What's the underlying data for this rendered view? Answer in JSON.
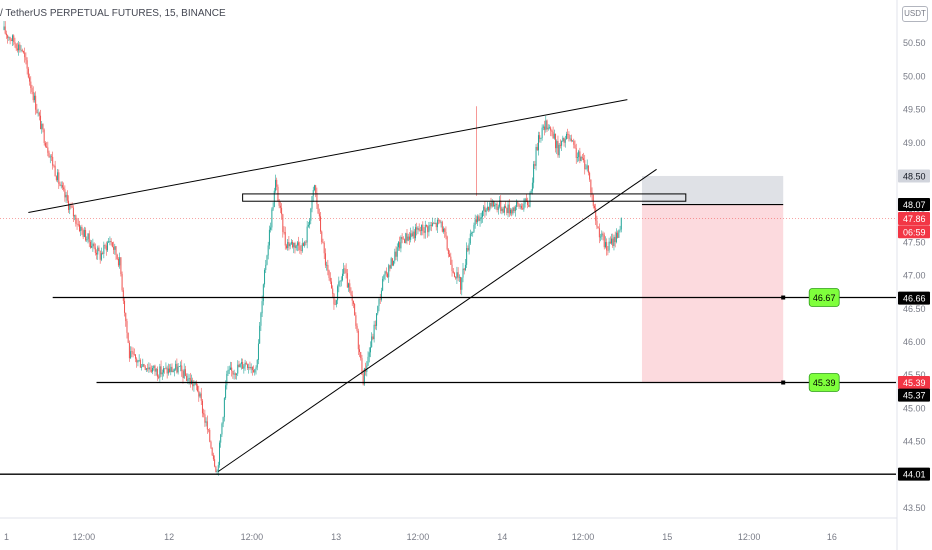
{
  "header": {
    "symbol_title": "/ TetherUS PERPETUAL FUTURES, 15, BINANCE",
    "currency": "USDT"
  },
  "colors": {
    "up": "#26a69a",
    "down": "#ef5350",
    "trendline": "#000000",
    "stop_zone": "#d1d4dc",
    "target_zone": "#f7a6b0",
    "tag_green": "#7fff3c",
    "tag_red": "#f23645"
  },
  "chart_data": {
    "type": "candlestick",
    "x_axis_labels": [
      "1",
      "12:00",
      "12",
      "12:00",
      "13",
      "12:00",
      "14",
      "12:00",
      "15",
      "12:00",
      "16"
    ],
    "y_axis_ticks": [
      "50.50",
      "50.00",
      "49.50",
      "49.00",
      "48.00",
      "47.50",
      "47.00",
      "46.50",
      "46.00",
      "45.50",
      "45.00",
      "44.50",
      "43.50"
    ],
    "ylim": [
      43.35,
      51.15
    ],
    "price_series": [
      {
        "t": 0,
        "p": 50.7
      },
      {
        "t": 4,
        "p": 50.4
      },
      {
        "t": 8,
        "p": 49.2
      },
      {
        "t": 12,
        "p": 48.3
      },
      {
        "t": 16,
        "p": 47.7
      },
      {
        "t": 20,
        "p": 47.3
      },
      {
        "t": 22,
        "p": 47.55
      },
      {
        "t": 24,
        "p": 47.2
      },
      {
        "t": 26,
        "p": 45.8
      },
      {
        "t": 28,
        "p": 45.7
      },
      {
        "t": 32,
        "p": 45.55
      },
      {
        "t": 36,
        "p": 45.6
      },
      {
        "t": 40,
        "p": 45.3
      },
      {
        "t": 44,
        "p": 44.05
      },
      {
        "t": 46,
        "p": 45.5
      },
      {
        "t": 50,
        "p": 45.7
      },
      {
        "t": 52,
        "p": 45.6
      },
      {
        "t": 54,
        "p": 47.2
      },
      {
        "t": 56,
        "p": 48.4
      },
      {
        "t": 58,
        "p": 47.5
      },
      {
        "t": 62,
        "p": 47.45
      },
      {
        "t": 64,
        "p": 48.35
      },
      {
        "t": 66,
        "p": 47.3
      },
      {
        "t": 68,
        "p": 46.55
      },
      {
        "t": 70,
        "p": 47.1
      },
      {
        "t": 72,
        "p": 46.5
      },
      {
        "t": 74,
        "p": 45.45
      },
      {
        "t": 76,
        "p": 46.1
      },
      {
        "t": 78,
        "p": 46.9
      },
      {
        "t": 82,
        "p": 47.55
      },
      {
        "t": 86,
        "p": 47.7
      },
      {
        "t": 90,
        "p": 47.8
      },
      {
        "t": 92,
        "p": 47.2
      },
      {
        "t": 94,
        "p": 46.85
      },
      {
        "t": 96,
        "p": 47.65
      },
      {
        "t": 100,
        "p": 48.1
      },
      {
        "t": 104,
        "p": 48.0
      },
      {
        "t": 108,
        "p": 48.1
      },
      {
        "t": 110,
        "p": 49.1
      },
      {
        "t": 112,
        "p": 49.3
      },
      {
        "t": 114,
        "p": 48.9
      },
      {
        "t": 116,
        "p": 49.1
      },
      {
        "t": 118,
        "p": 48.8
      },
      {
        "t": 120,
        "p": 48.65
      },
      {
        "t": 122,
        "p": 47.75
      },
      {
        "t": 124,
        "p": 47.4
      },
      {
        "t": 126,
        "p": 47.6
      },
      {
        "t": 127,
        "p": 47.8
      }
    ],
    "trendlines": [
      {
        "name": "upper-channel",
        "from": {
          "t": 5,
          "p": 47.95
        },
        "to": {
          "t": 128,
          "p": 49.65
        }
      },
      {
        "name": "rising-support",
        "from": {
          "t": 44,
          "p": 44.05
        },
        "to": {
          "t": 134,
          "p": 48.6
        }
      }
    ],
    "horizontal_levels": [
      {
        "name": "support-46-67",
        "price": 46.67,
        "t_start": 10,
        "t_end": 188,
        "tag": "46.67"
      },
      {
        "name": "support-45-39",
        "price": 45.39,
        "t_start": 19,
        "t_end": 188,
        "tag": "45.39"
      },
      {
        "name": "low-44-01",
        "price": 44.01,
        "t_start": -2,
        "t_end": 188,
        "tag": ""
      }
    ],
    "entry_box": {
      "t_start": 49,
      "t_end": 140,
      "p_top": 48.23,
      "p_bottom": 48.12
    },
    "position": {
      "t_start": 131,
      "t_end": 160,
      "entry": 48.07,
      "stop": 48.5,
      "target": 45.39
    },
    "price_labels": [
      {
        "name": "stop-label",
        "text": "48.50",
        "price": 48.5,
        "style": "gray"
      },
      {
        "name": "entry-label",
        "text": "48.07",
        "price": 48.07,
        "style": "black"
      },
      {
        "name": "last-price-label",
        "text": "47.86",
        "price": 47.86,
        "style": "red"
      },
      {
        "name": "countdown-label",
        "text": "06:59",
        "price": 47.66,
        "style": "red"
      },
      {
        "name": "level-46-66-label",
        "text": "46.66",
        "price": 46.66,
        "style": "black"
      },
      {
        "name": "level-45-39-label",
        "text": "45.39",
        "price": 45.39,
        "style": "red"
      },
      {
        "name": "level-45-37-label",
        "text": "45.37",
        "price": 45.2,
        "style": "black"
      },
      {
        "name": "level-44-01-label",
        "text": "44.01",
        "price": 44.01,
        "style": "black"
      }
    ]
  }
}
